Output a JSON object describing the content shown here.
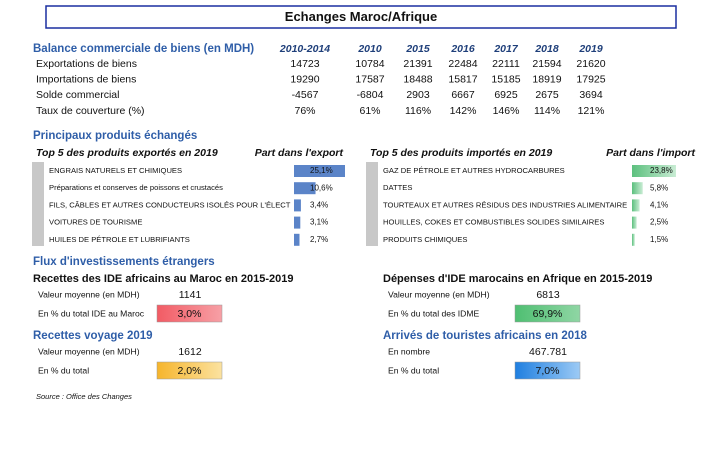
{
  "title": "Echanges Maroc/Afrique",
  "balance": {
    "heading": "Balance commerciale de biens (en MDH)",
    "columns": [
      "2010-2014",
      "2010",
      "2015",
      "2016",
      "2017",
      "2018",
      "2019"
    ],
    "rows": [
      {
        "label": "Exportations de biens",
        "values": [
          "14723",
          "10784",
          "21391",
          "22484",
          "22111",
          "21594",
          "21620"
        ]
      },
      {
        "label": "Importations de biens",
        "values": [
          "19290",
          "17587",
          "18488",
          "15817",
          "15185",
          "18919",
          "17925"
        ]
      },
      {
        "label": "Solde commercial",
        "values": [
          "-4567",
          "-6804",
          "2903",
          "6667",
          "6925",
          "2675",
          "3694"
        ]
      },
      {
        "label": "Taux de couverture (%)",
        "values": [
          "76%",
          "61%",
          "116%",
          "142%",
          "146%",
          "114%",
          "121%"
        ]
      }
    ]
  },
  "products": {
    "heading": "Principaux produits échangés",
    "exports": {
      "title": "Top 5 des produits exportés en 2019",
      "share_title": "Part dans l'export",
      "items": [
        {
          "name": "ENGRAIS NATURELS ET CHIMIQUES",
          "share": 25.1,
          "share_label": "25,1%"
        },
        {
          "name": "Préparations et conserves de poissons et crustacés",
          "share": 10.6,
          "share_label": "10,6%"
        },
        {
          "name": "FILS, CÂBLES ET AUTRES CONDUCTEURS ISOLÉS POUR L'ÉLECT",
          "share": 3.4,
          "share_label": "3,4%"
        },
        {
          "name": "VOITURES DE TOURISME",
          "share": 3.1,
          "share_label": "3,1%"
        },
        {
          "name": "HUILES DE PÉTROLE ET LUBRIFIANTS",
          "share": 2.7,
          "share_label": "2,7%"
        }
      ]
    },
    "imports": {
      "title": "Top 5 des produits importés en 2019",
      "share_title": "Part dans l'import",
      "items": [
        {
          "name": "GAZ DE PÉTROLE ET AUTRES HYDROCARBURES",
          "share": 23.8,
          "share_label": "23,8%"
        },
        {
          "name": "DATTES",
          "share": 5.8,
          "share_label": "5,8%"
        },
        {
          "name": "TOURTEAUX ET AUTRES RÉSIDUS DES INDUSTRIES ALIMENTAIRE",
          "share": 4.1,
          "share_label": "4,1%"
        },
        {
          "name": "HOUILLES, COKES ET COMBUSTIBLES SOLIDES SIMILAIRES",
          "share": 2.5,
          "share_label": "2,5%"
        },
        {
          "name": "PRODUITS CHIMIQUES",
          "share": 1.5,
          "share_label": "1,5%"
        }
      ]
    }
  },
  "flux": {
    "heading": "Flux d'investissements étrangers",
    "ide_in": {
      "title": "Recettes des IDE africains au Maroc en 2015-2019",
      "label1": "Valeur moyenne (en MDH)",
      "value1": "1141",
      "label2": "En % du total IDE au Maroc",
      "value2": "3,0%"
    },
    "ide_out": {
      "title": "Dépenses d'IDE marocains en Afrique en 2015-2019",
      "label1": "Valeur moyenne (en MDH)",
      "value1": "6813",
      "label2": "En % du total des IDME",
      "value2": "69,9%"
    },
    "voyage": {
      "title": "Recettes voyage 2019",
      "label1": "Valeur moyenne (en MDH)",
      "value1": "1612",
      "label2": "En % du total",
      "value2": "2,0%"
    },
    "tourists": {
      "title": "Arrivés de touristes africains en 2018",
      "label1": "En nombre",
      "value1": "467.781",
      "label2": "En % du total",
      "value2": "7,0%"
    }
  },
  "source": "Source : Office des Changes"
}
